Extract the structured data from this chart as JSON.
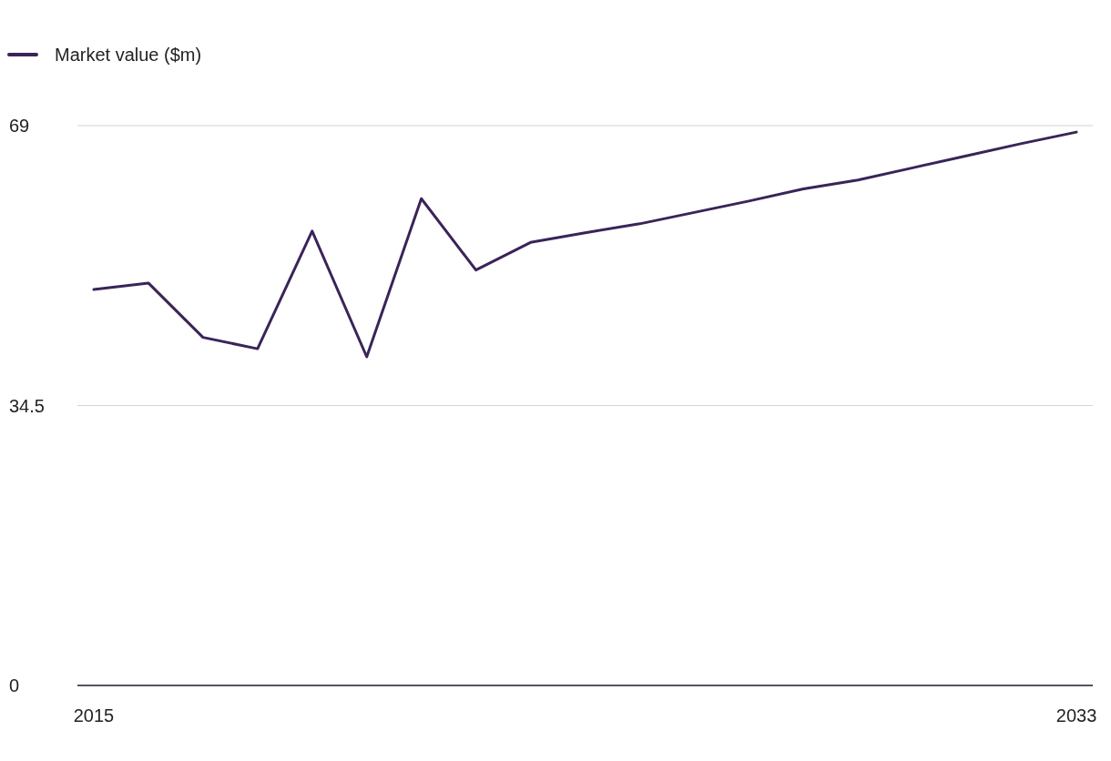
{
  "chart_data": {
    "type": "line",
    "x": [
      2015,
      2016,
      2017,
      2018,
      2019,
      2020,
      2021,
      2022,
      2023,
      2024,
      2025,
      2026,
      2027,
      2028,
      2029,
      2030,
      2031,
      2032,
      2033
    ],
    "series": [
      {
        "name": "Market value ($m)",
        "color": "#3a2458",
        "values": [
          48.8,
          49.6,
          42.9,
          41.5,
          56.0,
          40.5,
          60.0,
          51.2,
          54.6,
          55.8,
          56.9,
          58.3,
          59.7,
          61.2,
          62.3,
          63.8,
          65.3,
          66.8,
          68.2
        ]
      }
    ],
    "xlim": [
      2014.7,
      2033.3
    ],
    "xticks": [
      2015,
      2033
    ],
    "ylim": [
      0,
      69
    ],
    "yticks": [
      0,
      34.5,
      69
    ],
    "grid": "y",
    "legend": "top left",
    "marker": "none",
    "line_style": "solid"
  }
}
